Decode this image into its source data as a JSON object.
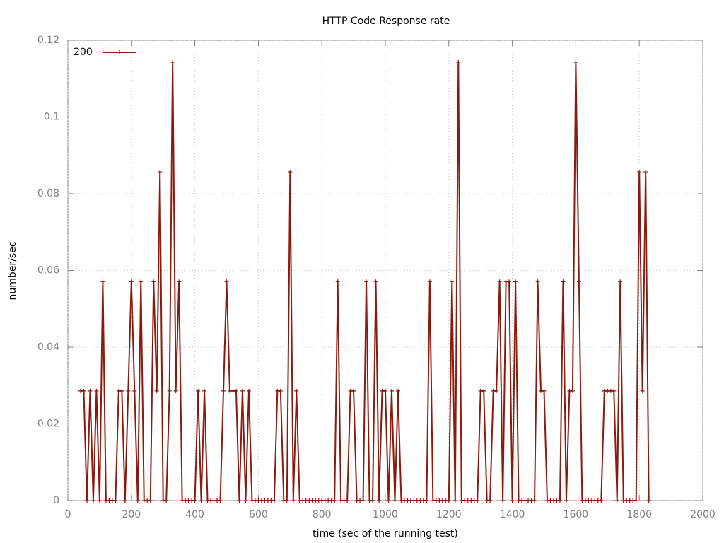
{
  "chart_data": {
    "type": "line",
    "title": "HTTP Code Response rate",
    "x_label": "time (sec of the running test)",
    "y_label": "number/sec",
    "x": [
      40,
      50,
      60,
      70,
      80,
      90,
      100,
      110,
      120,
      130,
      140,
      150,
      160,
      170,
      180,
      190,
      200,
      210,
      220,
      230,
      240,
      250,
      260,
      270,
      280,
      290,
      300,
      310,
      320,
      330,
      340,
      350,
      360,
      370,
      380,
      390,
      400,
      410,
      420,
      430,
      440,
      450,
      460,
      470,
      480,
      490,
      500,
      510,
      520,
      530,
      540,
      550,
      560,
      570,
      580,
      590,
      600,
      610,
      620,
      630,
      640,
      650,
      660,
      670,
      680,
      690,
      700,
      710,
      720,
      730,
      740,
      750,
      760,
      770,
      780,
      790,
      800,
      810,
      820,
      830,
      840,
      850,
      860,
      870,
      880,
      890,
      900,
      910,
      920,
      930,
      940,
      950,
      960,
      970,
      980,
      990,
      1000,
      1010,
      1020,
      1030,
      1040,
      1050,
      1060,
      1070,
      1080,
      1090,
      1100,
      1110,
      1120,
      1130,
      1140,
      1150,
      1160,
      1170,
      1180,
      1190,
      1200,
      1210,
      1220,
      1230,
      1240,
      1250,
      1260,
      1270,
      1280,
      1290,
      1300,
      1310,
      1320,
      1330,
      1340,
      1350,
      1360,
      1370,
      1380,
      1390,
      1400,
      1410,
      1420,
      1430,
      1440,
      1450,
      1460,
      1470,
      1480,
      1490,
      1500,
      1510,
      1520,
      1530,
      1540,
      1550,
      1560,
      1570,
      1580,
      1590,
      1600,
      1610,
      1620,
      1630,
      1640,
      1650,
      1660,
      1670,
      1680,
      1690,
      1700,
      1710,
      1720,
      1730,
      1740,
      1750,
      1760,
      1770,
      1780,
      1790,
      1800,
      1810,
      1820,
      1830
    ],
    "series": [
      {
        "name": "200",
        "color": "#8b1a0e",
        "values": [
          0.0286,
          0.0286,
          0,
          0.0286,
          0,
          0.0286,
          0,
          0.0571,
          0,
          0,
          0,
          0,
          0.0286,
          0.0286,
          0,
          0.0286,
          0.0571,
          0.0286,
          0,
          0.0571,
          0,
          0,
          0,
          0.0571,
          0.0286,
          0.0857,
          0,
          0,
          0.0286,
          0.1143,
          0.0286,
          0.0571,
          0,
          0,
          0,
          0,
          0,
          0.0286,
          0,
          0.0286,
          0,
          0,
          0,
          0,
          0,
          0.0286,
          0.0571,
          0.0286,
          0.0286,
          0.0286,
          0,
          0.0286,
          0,
          0.0286,
          0,
          0,
          0,
          0,
          0,
          0,
          0,
          0,
          0.0286,
          0.0286,
          0,
          0,
          0.0857,
          0,
          0.0286,
          0,
          0,
          0,
          0,
          0,
          0,
          0,
          0,
          0,
          0,
          0,
          0,
          0.0571,
          0,
          0,
          0,
          0.0286,
          0.0286,
          0,
          0,
          0,
          0.0571,
          0,
          0,
          0.0571,
          0,
          0.0286,
          0.0286,
          0,
          0.0286,
          0,
          0.0286,
          0,
          0,
          0,
          0,
          0,
          0,
          0,
          0,
          0,
          0.0571,
          0,
          0,
          0,
          0,
          0,
          0,
          0.0571,
          0,
          0.1143,
          0,
          0,
          0,
          0,
          0,
          0,
          0.0286,
          0.0286,
          0,
          0,
          0.0286,
          0.0286,
          0.0571,
          0,
          0.0571,
          0.0571,
          0,
          0.0571,
          0,
          0,
          0,
          0,
          0,
          0,
          0.0571,
          0.0286,
          0.0286,
          0,
          0,
          0,
          0,
          0,
          0.0571,
          0,
          0.0286,
          0.0286,
          0.1143,
          0.0571,
          0,
          0,
          0,
          0,
          0,
          0,
          0,
          0.0286,
          0.0286,
          0.0286,
          0.0286,
          0,
          0.0571,
          0,
          0,
          0,
          0,
          0,
          0.0857,
          0.0286,
          0.0857,
          0
        ]
      }
    ],
    "xlim": [
      0,
      2000
    ],
    "xticks": [
      0,
      200,
      400,
      600,
      800,
      1000,
      1200,
      1400,
      1600,
      1800,
      2000
    ],
    "ylim": [
      0,
      0.12
    ],
    "yticks": [
      0,
      0.02,
      0.04,
      0.06,
      0.08,
      0.1,
      0.12
    ],
    "grid": true,
    "legend": "top-left"
  }
}
